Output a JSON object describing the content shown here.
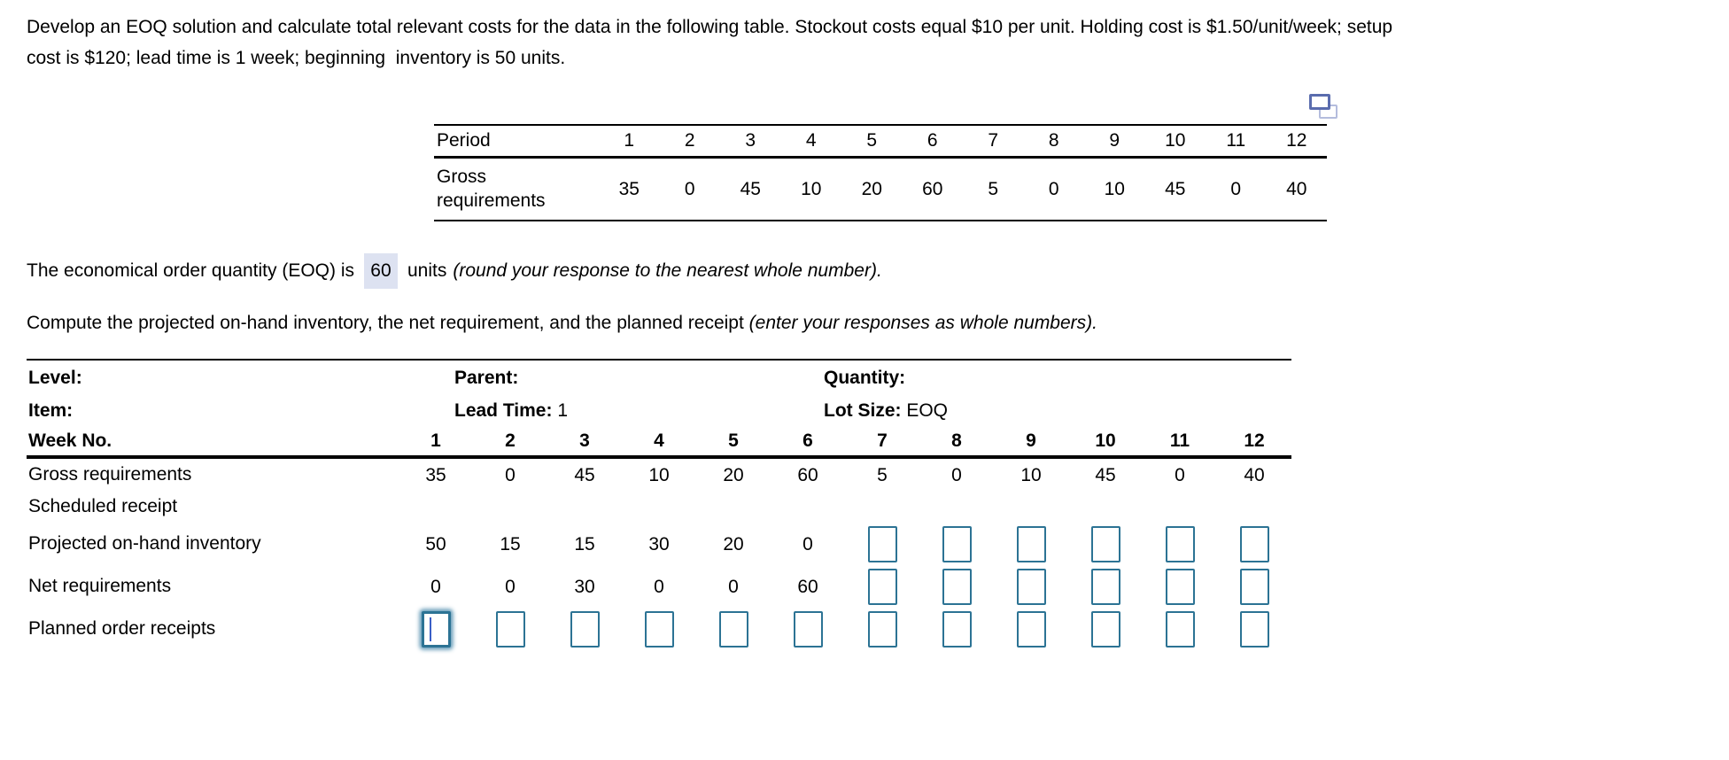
{
  "problem": {
    "statement_lines": [
      "Develop an EOQ solution and calculate total relevant costs for the data in the following table. Stockout costs equal $10 per unit. Holding cost is $1.50/unit/week; setup",
      "cost is $120; lead time is 1 week; beginning  inventory is 50 units."
    ]
  },
  "demand_table": {
    "period_label": "Period",
    "periods": [
      "1",
      "2",
      "3",
      "4",
      "5",
      "6",
      "7",
      "8",
      "9",
      "10",
      "11",
      "12"
    ],
    "gross_label": "Gross requirements",
    "gross_values": [
      "35",
      "0",
      "45",
      "10",
      "20",
      "60",
      "5",
      "0",
      "10",
      "45",
      "0",
      "40"
    ]
  },
  "eoq_line": {
    "prefix": "The economical order quantity (EOQ) is",
    "answer": "60",
    "suffix": "units",
    "note": "(round your response to the nearest whole number)."
  },
  "compute_line": {
    "text": "Compute the projected on-hand inventory, the net requirement, and the planned receipt ",
    "note": "(enter your responses as whole numbers)."
  },
  "mrp": {
    "level_label": "Level:",
    "item_label": "Item:",
    "week_label": "Week No.",
    "parent_label": "Parent:",
    "lead_time_label": "Lead Time:",
    "lead_time_value": "1",
    "quantity_label": "Quantity:",
    "lot_size_label": "Lot Size:",
    "lot_size_value": "EOQ",
    "weeks": [
      "1",
      "2",
      "3",
      "4",
      "5",
      "6",
      "7",
      "8",
      "9",
      "10",
      "11",
      "12"
    ],
    "rows": [
      {
        "label": "Gross requirements",
        "cells": [
          "35",
          "0",
          "45",
          "10",
          "20",
          "60",
          "5",
          "0",
          "10",
          "45",
          "0",
          "40"
        ]
      },
      {
        "label": "Scheduled receipt",
        "cells": [
          "",
          "",
          "",
          "",
          "",
          "",
          "",
          "",
          "",
          "",
          "",
          ""
        ]
      },
      {
        "label": "Projected on-hand inventory",
        "cells": [
          "50",
          "15",
          "15",
          "30",
          "20",
          "0",
          null,
          null,
          null,
          null,
          null,
          null
        ]
      },
      {
        "label": "Net requirements",
        "cells": [
          "0",
          "0",
          "30",
          "0",
          "0",
          "60",
          null,
          null,
          null,
          null,
          null,
          null
        ]
      },
      {
        "label": "Planned order receipts",
        "cells": [
          null,
          null,
          null,
          null,
          null,
          null,
          null,
          null,
          null,
          null,
          null,
          null
        ],
        "focused_cell": 0
      }
    ]
  },
  "colors": {
    "input_border": "#2c7394",
    "focus_glow": "#4888aa",
    "caret": "#3a5ec6",
    "answer_highlight_bg": "#dde2f1",
    "copy_icon_dark": "#5a6cae",
    "copy_icon_light": "#b4bcdd"
  }
}
